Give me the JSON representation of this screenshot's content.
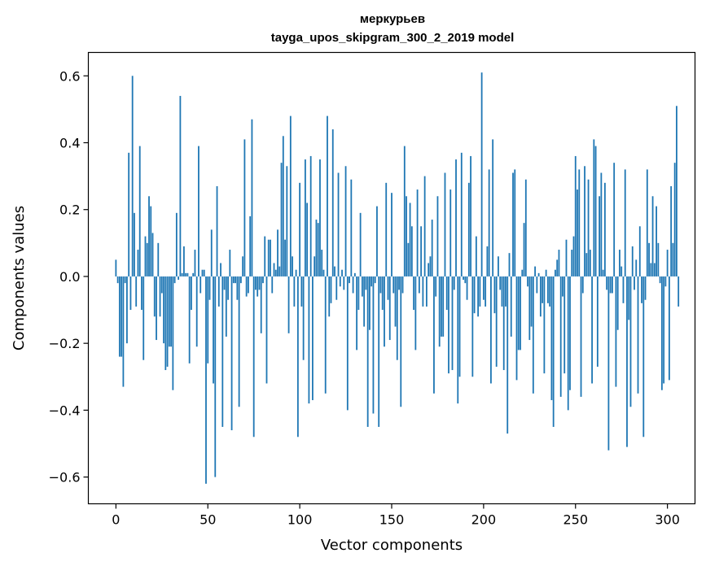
{
  "chart_data": {
    "type": "bar",
    "title": "меркурьев",
    "subtitle": "tayga_upos_skipgram_300_2_2019 model",
    "xlabel": "Vector components",
    "ylabel": "Components values",
    "xlim": [
      -15,
      315
    ],
    "ylim": [
      -0.68,
      0.67
    ],
    "xticks": [
      0,
      50,
      100,
      150,
      200,
      250,
      300
    ],
    "xtick_labels": [
      "0",
      "50",
      "100",
      "150",
      "200",
      "250",
      "300"
    ],
    "yticks": [
      -0.6,
      -0.4,
      -0.2,
      0.0,
      0.2,
      0.4,
      0.6
    ],
    "ytick_labels": [
      "−0.6",
      "−0.4",
      "−0.2",
      "0.0",
      "0.2",
      "0.4",
      "0.6"
    ],
    "grid": false,
    "bar_color": "#1f77b4",
    "series": [
      {
        "values": [
          0.05,
          -0.02,
          -0.24,
          -0.24,
          -0.33,
          -0.02,
          -0.2,
          0.37,
          -0.1,
          0.6,
          0.19,
          -0.09,
          0.08,
          0.39,
          -0.1,
          -0.25,
          0.12,
          0.1,
          0.24,
          0.21,
          0.13,
          -0.12,
          -0.19,
          0.1,
          -0.12,
          -0.05,
          -0.2,
          -0.28,
          -0.27,
          -0.21,
          -0.21,
          -0.34,
          -0.02,
          0.19,
          -0.01,
          0.54,
          0.01,
          0.09,
          0.01,
          0.01,
          -0.26,
          -0.1,
          0.01,
          0.08,
          -0.21,
          0.39,
          -0.05,
          0.02,
          0.02,
          -0.62,
          -0.26,
          -0.07,
          0.14,
          -0.32,
          -0.6,
          0.27,
          -0.09,
          0.04,
          -0.45,
          -0.04,
          -0.18,
          -0.07,
          0.08,
          -0.46,
          -0.02,
          -0.02,
          -0.07,
          -0.39,
          -0.02,
          0.06,
          0.41,
          -0.06,
          -0.05,
          0.18,
          0.47,
          -0.48,
          -0.04,
          -0.06,
          -0.04,
          -0.17,
          -0.02,
          0.12,
          -0.32,
          0.11,
          0.11,
          -0.05,
          0.04,
          0.02,
          0.14,
          0.03,
          0.34,
          0.42,
          0.11,
          0.33,
          -0.17,
          0.48,
          0.06,
          -0.09,
          0.02,
          -0.48,
          0.28,
          -0.09,
          -0.25,
          0.35,
          0.22,
          -0.38,
          0.36,
          -0.37,
          0.06,
          0.17,
          0.16,
          0.35,
          0.08,
          0.02,
          -0.35,
          0.48,
          -0.12,
          -0.08,
          0.44,
          0.03,
          -0.07,
          0.31,
          -0.03,
          0.02,
          -0.04,
          0.33,
          -0.4,
          -0.02,
          0.29,
          -0.05,
          0.01,
          -0.22,
          -0.1,
          0.19,
          -0.06,
          -0.15,
          -0.04,
          -0.45,
          -0.16,
          -0.03,
          -0.41,
          -0.02,
          0.21,
          -0.45,
          -0.05,
          -0.1,
          -0.21,
          0.28,
          -0.07,
          -0.19,
          0.25,
          -0.05,
          -0.15,
          -0.25,
          -0.04,
          -0.39,
          -0.05,
          0.39,
          0.24,
          0.1,
          0.22,
          0.15,
          -0.1,
          -0.22,
          0.26,
          -0.05,
          0.15,
          -0.09,
          0.3,
          -0.09,
          0.04,
          0.06,
          0.17,
          -0.35,
          -0.06,
          0.24,
          -0.21,
          -0.18,
          -0.18,
          0.31,
          -0.1,
          -0.29,
          0.26,
          -0.28,
          -0.04,
          0.35,
          -0.38,
          -0.3,
          0.37,
          -0.01,
          -0.02,
          -0.07,
          0.28,
          0.36,
          -0.3,
          -0.11,
          0.12,
          -0.12,
          -0.09,
          0.61,
          -0.07,
          -0.09,
          0.09,
          0.32,
          -0.32,
          0.41,
          -0.11,
          -0.27,
          0.06,
          -0.04,
          -0.09,
          -0.28,
          -0.09,
          -0.47,
          0.07,
          -0.18,
          0.31,
          0.32,
          -0.31,
          -0.22,
          -0.22,
          0.02,
          0.16,
          0.29,
          -0.03,
          -0.19,
          -0.15,
          -0.35,
          0.03,
          -0.05,
          0.01,
          -0.12,
          -0.08,
          -0.29,
          0.02,
          -0.08,
          -0.09,
          -0.37,
          -0.45,
          0.02,
          0.05,
          0.08,
          -0.36,
          -0.06,
          -0.29,
          0.11,
          -0.4,
          -0.34,
          0.08,
          0.12,
          0.36,
          0.26,
          0.32,
          -0.36,
          -0.05,
          0.33,
          0.07,
          0.29,
          0.08,
          -0.32,
          0.41,
          0.39,
          -0.27,
          0.24,
          0.31,
          0.02,
          0.28,
          -0.04,
          -0.52,
          -0.05,
          -0.05,
          0.34,
          -0.33,
          -0.16,
          0.08,
          0.03,
          -0.08,
          0.32,
          -0.51,
          -0.13,
          -0.39,
          0.09,
          -0.04,
          0.05,
          -0.35,
          0.15,
          -0.08,
          -0.48,
          -0.07,
          0.32,
          0.1,
          0.04,
          0.24,
          0.04,
          0.21,
          0.1,
          -0.02,
          -0.34,
          -0.32,
          -0.03,
          0.08,
          -0.31,
          0.27,
          0.1,
          0.34,
          0.51,
          -0.09
        ]
      }
    ]
  }
}
